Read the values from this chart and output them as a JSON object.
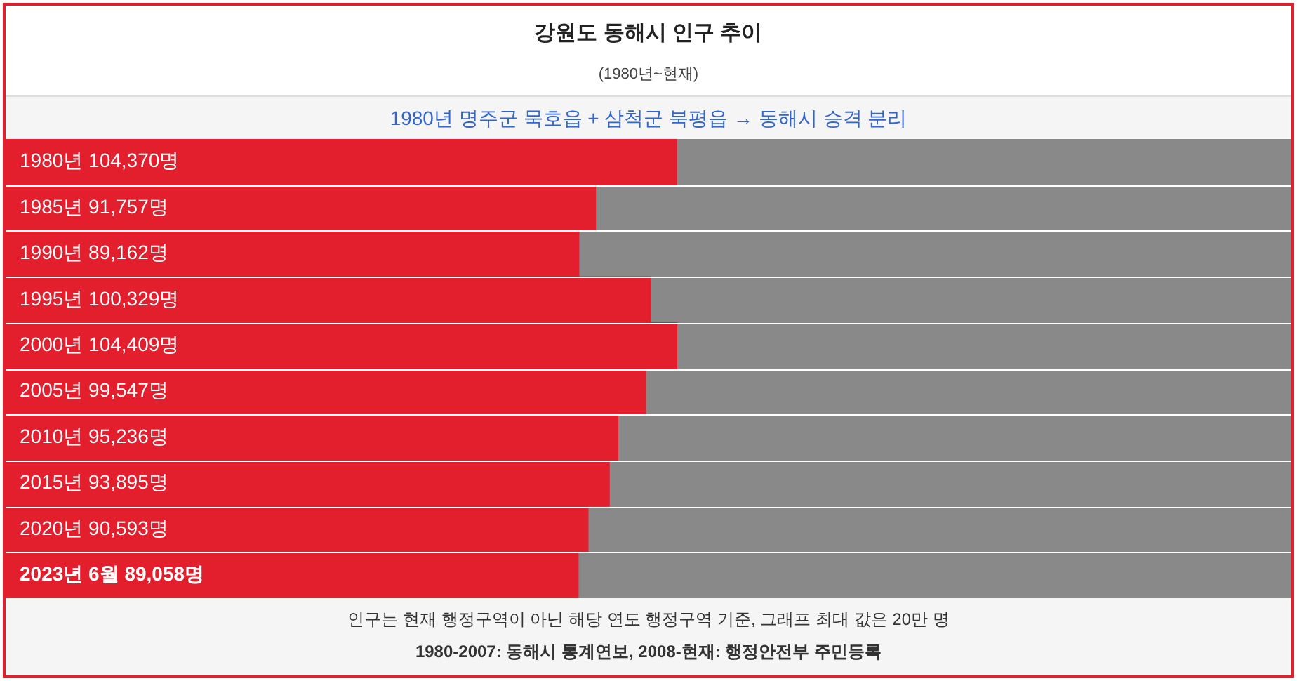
{
  "chart_data": {
    "type": "bar",
    "orientation": "horizontal",
    "title": "강원도 동해시 인구 추이",
    "subtitle": "(1980년~현재)",
    "categories": [
      "1980년",
      "1985년",
      "1990년",
      "1995년",
      "2000년",
      "2005년",
      "2010년",
      "2015년",
      "2020년",
      "2023년 6월"
    ],
    "values": [
      104370,
      91757,
      89162,
      100329,
      104409,
      99547,
      95236,
      93895,
      90593,
      89058
    ],
    "value_labels": [
      "104,370명",
      "91,757명",
      "89,162명",
      "100,329명",
      "104,409명",
      "99,547명",
      "95,236명",
      "93,895명",
      "90,593명",
      "89,058명"
    ],
    "color": "#e31e2d",
    "xlim": [
      0,
      200000
    ],
    "tick_labels": false,
    "annotations": [
      "1980년 명주군 묵호읍 + 삼척군 북평읍 → 동해시 승격 분리",
      "인구는 현재 행정구역이 아닌 해당 연도 행정구역 기준, 그래프 최대 값은 20만 명",
      "1980-2007: 동해시 통계연보, 2008-현재: 행정안전부 주민등록"
    ]
  }
}
